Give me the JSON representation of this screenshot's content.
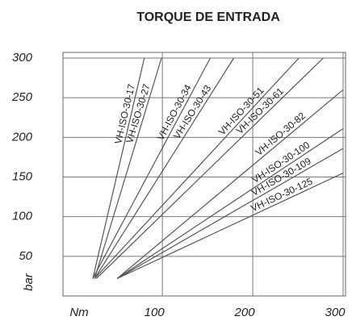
{
  "chart_data": {
    "type": "line",
    "title": "TORQUE DE ENTRADA",
    "xlabel": "Nm",
    "ylabel": "bar",
    "xlim": [
      -10,
      300
    ],
    "ylim": [
      0,
      300
    ],
    "xticks": [
      100,
      200,
      300
    ],
    "yticks": [
      50,
      100,
      150,
      200,
      250,
      300
    ],
    "grid": true,
    "color": "#555555",
    "series": [
      {
        "name": "VH-ISO-30-17",
        "x": [
          23,
          80
        ],
        "values": [
          22,
          300
        ]
      },
      {
        "name": "VH-ISO-30-27",
        "x": [
          25,
          99
        ],
        "values": [
          22,
          300
        ]
      },
      {
        "name": "VH-ISO-30-34",
        "x": [
          23,
          153
        ],
        "values": [
          22,
          300
        ]
      },
      {
        "name": "VH-ISO-30-43",
        "x": [
          25,
          179
        ],
        "values": [
          22,
          300
        ]
      },
      {
        "name": "VH-ISO-30-51",
        "x": [
          25,
          251
        ],
        "values": [
          22,
          300
        ]
      },
      {
        "name": "VH-ISO-30-61",
        "x": [
          27,
          278
        ],
        "values": [
          22,
          300
        ]
      },
      {
        "name": "VH-ISO-30-82",
        "x": [
          50,
          300
        ],
        "values": [
          22,
          260
        ]
      },
      {
        "name": "VH-ISO-30-100",
        "x": [
          50,
          300
        ],
        "values": [
          22,
          211
        ]
      },
      {
        "name": "VH-ISO-30-109",
        "x": [
          50,
          300
        ],
        "values": [
          22,
          186
        ]
      },
      {
        "name": "VH-ISO-30-125",
        "x": [
          50,
          300
        ],
        "values": [
          22,
          155
        ]
      }
    ]
  }
}
